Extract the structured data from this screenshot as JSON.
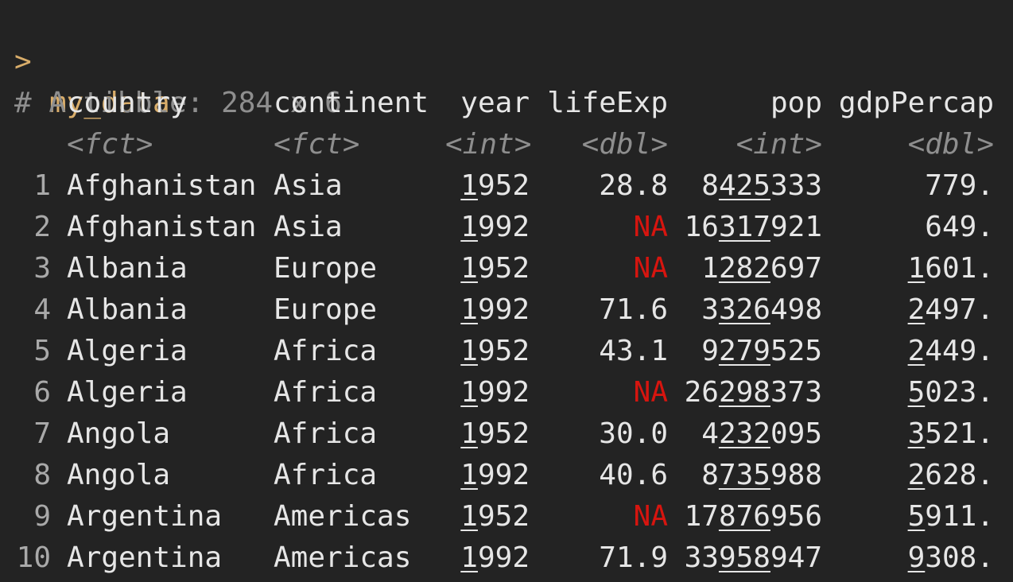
{
  "console": {
    "prompt_symbol": ">",
    "command": "my_data",
    "tibble_header": "# A tibble: 284 x 6"
  },
  "colors": {
    "background": "#232323",
    "prompt": "#d9ad6a",
    "na": "#d7150f",
    "muted": "#8e8e8e",
    "text": "#e6e6e6"
  },
  "table": {
    "columns": [
      {
        "name": "country",
        "type": "<fct>"
      },
      {
        "name": "continent",
        "type": "<fct>"
      },
      {
        "name": "year",
        "type": "<int>"
      },
      {
        "name": "lifeExp",
        "type": "<dbl>"
      },
      {
        "name": "pop",
        "type": "<int>"
      },
      {
        "name": "gdpPercap",
        "type": "<dbl>"
      }
    ],
    "rows": [
      {
        "idx": "1",
        "country": "Afghanistan",
        "continent": "Asia",
        "year": "1952",
        "lifeExp": "28.8",
        "pop": "8425333",
        "gdpPercap": "779."
      },
      {
        "idx": "2",
        "country": "Afghanistan",
        "continent": "Asia",
        "year": "1992",
        "lifeExp": "NA",
        "pop": "16317921",
        "gdpPercap": "649."
      },
      {
        "idx": "3",
        "country": "Albania",
        "continent": "Europe",
        "year": "1952",
        "lifeExp": "NA",
        "pop": "1282697",
        "gdpPercap": "1601."
      },
      {
        "idx": "4",
        "country": "Albania",
        "continent": "Europe",
        "year": "1992",
        "lifeExp": "71.6",
        "pop": "3326498",
        "gdpPercap": "2497."
      },
      {
        "idx": "5",
        "country": "Algeria",
        "continent": "Africa",
        "year": "1952",
        "lifeExp": "43.1",
        "pop": "9279525",
        "gdpPercap": "2449."
      },
      {
        "idx": "6",
        "country": "Algeria",
        "continent": "Africa",
        "year": "1992",
        "lifeExp": "NA",
        "pop": "26298373",
        "gdpPercap": "5023."
      },
      {
        "idx": "7",
        "country": "Angola",
        "continent": "Africa",
        "year": "1952",
        "lifeExp": "30.0",
        "pop": "4232095",
        "gdpPercap": "3521."
      },
      {
        "idx": "8",
        "country": "Angola",
        "continent": "Africa",
        "year": "1992",
        "lifeExp": "40.6",
        "pop": "8735988",
        "gdpPercap": "2628."
      },
      {
        "idx": "9",
        "country": "Argentina",
        "continent": "Americas",
        "year": "1952",
        "lifeExp": "NA",
        "pop": "17876956",
        "gdpPercap": "5911."
      },
      {
        "idx": "10",
        "country": "Argentina",
        "continent": "Americas",
        "year": "1992",
        "lifeExp": "71.9",
        "pop": "33958947",
        "gdpPercap": "9308."
      }
    ]
  }
}
